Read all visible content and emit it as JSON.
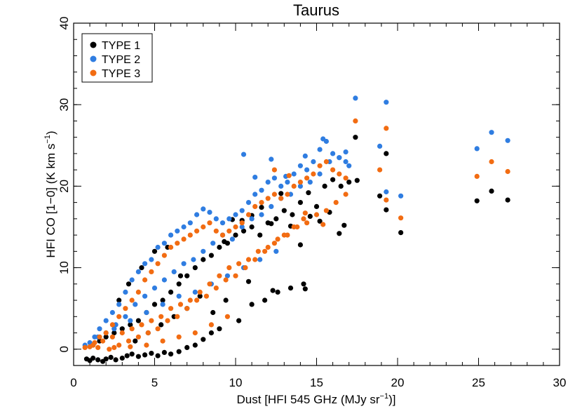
{
  "chart_data": {
    "type": "scatter",
    "title": "Taurus",
    "xlabel_main": "Dust [HFI 545 GHz (MJy sr",
    "xlabel_sup": "−1",
    "xlabel_end": ")]",
    "ylabel_main": "HFI CO [1−0] (K km s",
    "ylabel_sup": "−1",
    "ylabel_end": ")",
    "xlim": [
      0,
      30
    ],
    "ylim": [
      -2,
      40
    ],
    "x_ticks": [
      0,
      5,
      10,
      15,
      20,
      25,
      30
    ],
    "y_ticks": [
      0,
      10,
      20,
      30,
      40
    ],
    "x_tick_labels": [
      "0",
      "5",
      "10",
      "15",
      "20",
      "25",
      "30"
    ],
    "y_tick_labels": [
      "0",
      "10",
      "20",
      "30",
      "40"
    ],
    "grid": false,
    "legend_position": "top-left",
    "series": [
      {
        "name": "TYPE 1",
        "color": "#000000",
        "x": [
          0.8,
          1.0,
          1.2,
          1.5,
          1.8,
          2.0,
          2.3,
          2.6,
          3.0,
          3.3,
          3.6,
          4.0,
          4.4,
          4.8,
          5.2,
          5.6,
          6.0,
          6.5,
          7.0,
          7.5,
          8.0,
          8.5,
          9.0,
          1.2,
          1.6,
          2.0,
          2.5,
          3.0,
          3.5,
          4.0,
          4.5,
          5.0,
          5.5,
          6.0,
          6.5,
          7.0,
          7.5,
          8.0,
          8.5,
          9.0,
          9.5,
          10.0,
          10.5,
          11.0,
          11.5,
          12.0,
          12.5,
          13.0,
          13.5,
          14.0,
          14.5,
          15.0,
          15.5,
          16.0,
          16.5,
          17.0,
          17.5,
          9.3,
          9.8,
          10.4,
          11.0,
          11.6,
          12.2,
          12.8,
          13.4,
          14.0,
          14.6,
          15.2,
          15.8,
          16.4,
          16.7,
          17.4,
          18.9,
          19.3,
          19.3,
          20.2,
          24.9,
          25.8,
          26.8,
          2.8,
          3.4,
          4.2,
          5.0,
          5.8,
          6.6,
          3.8,
          4.6,
          5.4,
          6.2,
          7.0,
          7.8,
          8.6,
          9.4,
          10.2,
          11.0,
          11.8,
          12.6,
          13.4,
          14.2,
          10.8,
          12.3,
          14.3
        ],
        "y": [
          -1.2,
          -1.4,
          -1.1,
          -1.3,
          -1.5,
          -1.2,
          -1.0,
          -1.3,
          -1.1,
          -0.8,
          -0.6,
          -0.9,
          -0.7,
          -0.5,
          -0.8,
          -0.4,
          -0.6,
          -0.3,
          0.2,
          0.5,
          1.2,
          2.0,
          2.5,
          0.5,
          1.0,
          1.5,
          2.0,
          2.5,
          3.0,
          3.5,
          4.5,
          5.5,
          6.0,
          7.0,
          8.0,
          9.0,
          10.0,
          11.0,
          11.5,
          12.5,
          13.0,
          14.0,
          14.5,
          15.0,
          14.0,
          15.5,
          16.0,
          17.0,
          16.5,
          18.0,
          19.2,
          17.5,
          20.0,
          20.8,
          20.0,
          20.5,
          20.7,
          13.2,
          15.9,
          15.8,
          16.4,
          17.4,
          15.4,
          19.1,
          15.1,
          12.8,
          16.3,
          15.7,
          16.8,
          14.2,
          15.2,
          26.0,
          18.8,
          24.0,
          17.1,
          14.3,
          18.2,
          19.4,
          18.3,
          6.0,
          8.0,
          10.0,
          12.0,
          12.5,
          9.0,
          1.0,
          2.0,
          3.0,
          4.0,
          5.0,
          6.5,
          4.5,
          6.0,
          3.5,
          5.5,
          6.0,
          7.0,
          7.5,
          8.0,
          8.3,
          7.2,
          7.4
        ]
      },
      {
        "name": "TYPE 2",
        "color": "#2f7de1",
        "x": [
          0.7,
          1.0,
          1.3,
          1.6,
          2.0,
          2.4,
          2.8,
          3.2,
          3.6,
          4.0,
          4.4,
          4.8,
          5.2,
          5.6,
          6.0,
          6.4,
          6.8,
          7.2,
          7.6,
          8.0,
          8.4,
          8.8,
          9.2,
          9.6,
          10.0,
          10.4,
          10.8,
          11.2,
          11.6,
          12.0,
          12.4,
          12.8,
          13.2,
          13.6,
          14.0,
          14.4,
          14.8,
          15.2,
          15.6,
          16.0,
          16.4,
          16.8,
          17.4,
          18.9,
          19.3,
          19.3,
          20.2,
          24.9,
          25.8,
          26.8,
          2.0,
          2.6,
          3.2,
          3.8,
          4.4,
          5.0,
          5.6,
          6.2,
          6.8,
          7.4,
          8.0,
          8.6,
          9.2,
          9.8,
          10.4,
          11.0,
          11.6,
          12.2,
          12.8,
          13.4,
          14.0,
          14.6,
          15.2,
          15.8,
          16.4,
          17.0,
          10.5,
          11.2,
          12.2,
          13.1,
          14.3,
          15.4,
          16.8,
          1.5,
          2.5,
          3.5,
          4.5,
          5.5,
          6.5,
          7.5,
          8.5,
          9.5,
          10.5,
          11.5,
          12.5
        ],
        "y": [
          0.5,
          0.8,
          1.5,
          2.5,
          3.5,
          4.5,
          5.5,
          7.0,
          8.5,
          9.5,
          10.5,
          11.0,
          12.5,
          13.0,
          14.0,
          14.5,
          15.0,
          15.5,
          16.5,
          17.2,
          16.8,
          16.0,
          15.5,
          16.0,
          16.5,
          17.0,
          18.0,
          19.0,
          19.5,
          20.5,
          21.0,
          20.0,
          20.5,
          21.5,
          22.5,
          22.0,
          23.0,
          24.5,
          25.5,
          24.0,
          23.5,
          23.0,
          30.8,
          24.9,
          30.3,
          19.3,
          18.8,
          24.6,
          26.6,
          25.6,
          2.0,
          3.0,
          4.0,
          5.5,
          6.5,
          7.5,
          8.5,
          9.5,
          10.5,
          11.0,
          12.0,
          13.0,
          14.0,
          13.5,
          15.0,
          16.0,
          16.5,
          17.5,
          18.5,
          19.0,
          20.0,
          20.5,
          21.5,
          23.0,
          23.5,
          22.5,
          23.9,
          21.1,
          23.3,
          21.2,
          23.7,
          25.8,
          24.2,
          1.5,
          2.5,
          3.5,
          4.5,
          5.5,
          6.5,
          7.0,
          8.0,
          9.0,
          10.0,
          11.0,
          12.0
        ]
      },
      {
        "name": "TYPE 3",
        "color": "#f26c12",
        "x": [
          0.7,
          1.0,
          1.3,
          1.6,
          2.0,
          2.4,
          2.8,
          3.2,
          3.6,
          4.0,
          4.4,
          4.8,
          5.2,
          5.6,
          6.0,
          6.4,
          6.8,
          7.2,
          7.6,
          8.0,
          8.4,
          8.8,
          9.2,
          9.6,
          10.0,
          10.4,
          10.8,
          11.2,
          11.6,
          12.0,
          12.4,
          12.8,
          13.2,
          13.6,
          14.0,
          14.4,
          14.8,
          15.2,
          15.6,
          16.0,
          16.4,
          16.8,
          17.4,
          18.9,
          19.3,
          19.3,
          20.2,
          24.9,
          25.8,
          26.8,
          1.2,
          1.8,
          2.4,
          3.0,
          3.6,
          4.2,
          4.8,
          5.4,
          6.0,
          6.6,
          7.2,
          7.8,
          8.4,
          9.0,
          9.6,
          10.2,
          10.8,
          11.4,
          12.0,
          12.6,
          13.2,
          13.8,
          14.4,
          15.0,
          15.6,
          16.2,
          16.8,
          2.2,
          2.8,
          3.4,
          4.0,
          4.6,
          5.2,
          5.8,
          6.4,
          7.0,
          7.6,
          8.2,
          8.8,
          9.4,
          10.0,
          10.6,
          11.2,
          11.8,
          12.4,
          13.0,
          13.6,
          14.2,
          1.5,
          2.5,
          3.5,
          4.5,
          5.5,
          6.5,
          7.5,
          8.5,
          9.5,
          12.4,
          13.3,
          14.3,
          15.4
        ],
        "y": [
          0.2,
          0.3,
          0.8,
          1.5,
          2.0,
          3.0,
          4.0,
          5.0,
          6.0,
          7.0,
          8.5,
          9.5,
          10.5,
          11.5,
          12.5,
          13.0,
          13.5,
          14.0,
          14.5,
          15.0,
          15.5,
          14.5,
          14.0,
          14.5,
          15.0,
          15.5,
          16.5,
          17.5,
          18.0,
          18.5,
          19.0,
          18.5,
          19.0,
          20.0,
          20.5,
          21.0,
          21.5,
          22.5,
          23.0,
          22.0,
          21.5,
          21.0,
          28.0,
          22.0,
          27.1,
          18.3,
          16.1,
          21.2,
          23.0,
          21.8,
          0.5,
          1.0,
          1.5,
          2.0,
          2.5,
          3.0,
          3.5,
          4.0,
          5.0,
          5.5,
          6.0,
          7.0,
          8.0,
          9.0,
          10.0,
          10.5,
          11.0,
          12.0,
          12.5,
          13.5,
          14.0,
          15.0,
          15.5,
          16.5,
          17.0,
          18.0,
          19.0,
          0.0,
          0.5,
          1.0,
          1.5,
          2.0,
          2.5,
          3.5,
          4.0,
          5.0,
          6.0,
          6.5,
          7.5,
          8.5,
          9.0,
          10.0,
          11.0,
          12.0,
          13.0,
          14.0,
          15.0,
          16.0,
          0.2,
          0.2,
          0.3,
          0.5,
          1.0,
          1.5,
          2.0,
          3.0,
          4.0,
          22.0,
          21.3,
          16.7,
          15.3
        ]
      }
    ]
  }
}
